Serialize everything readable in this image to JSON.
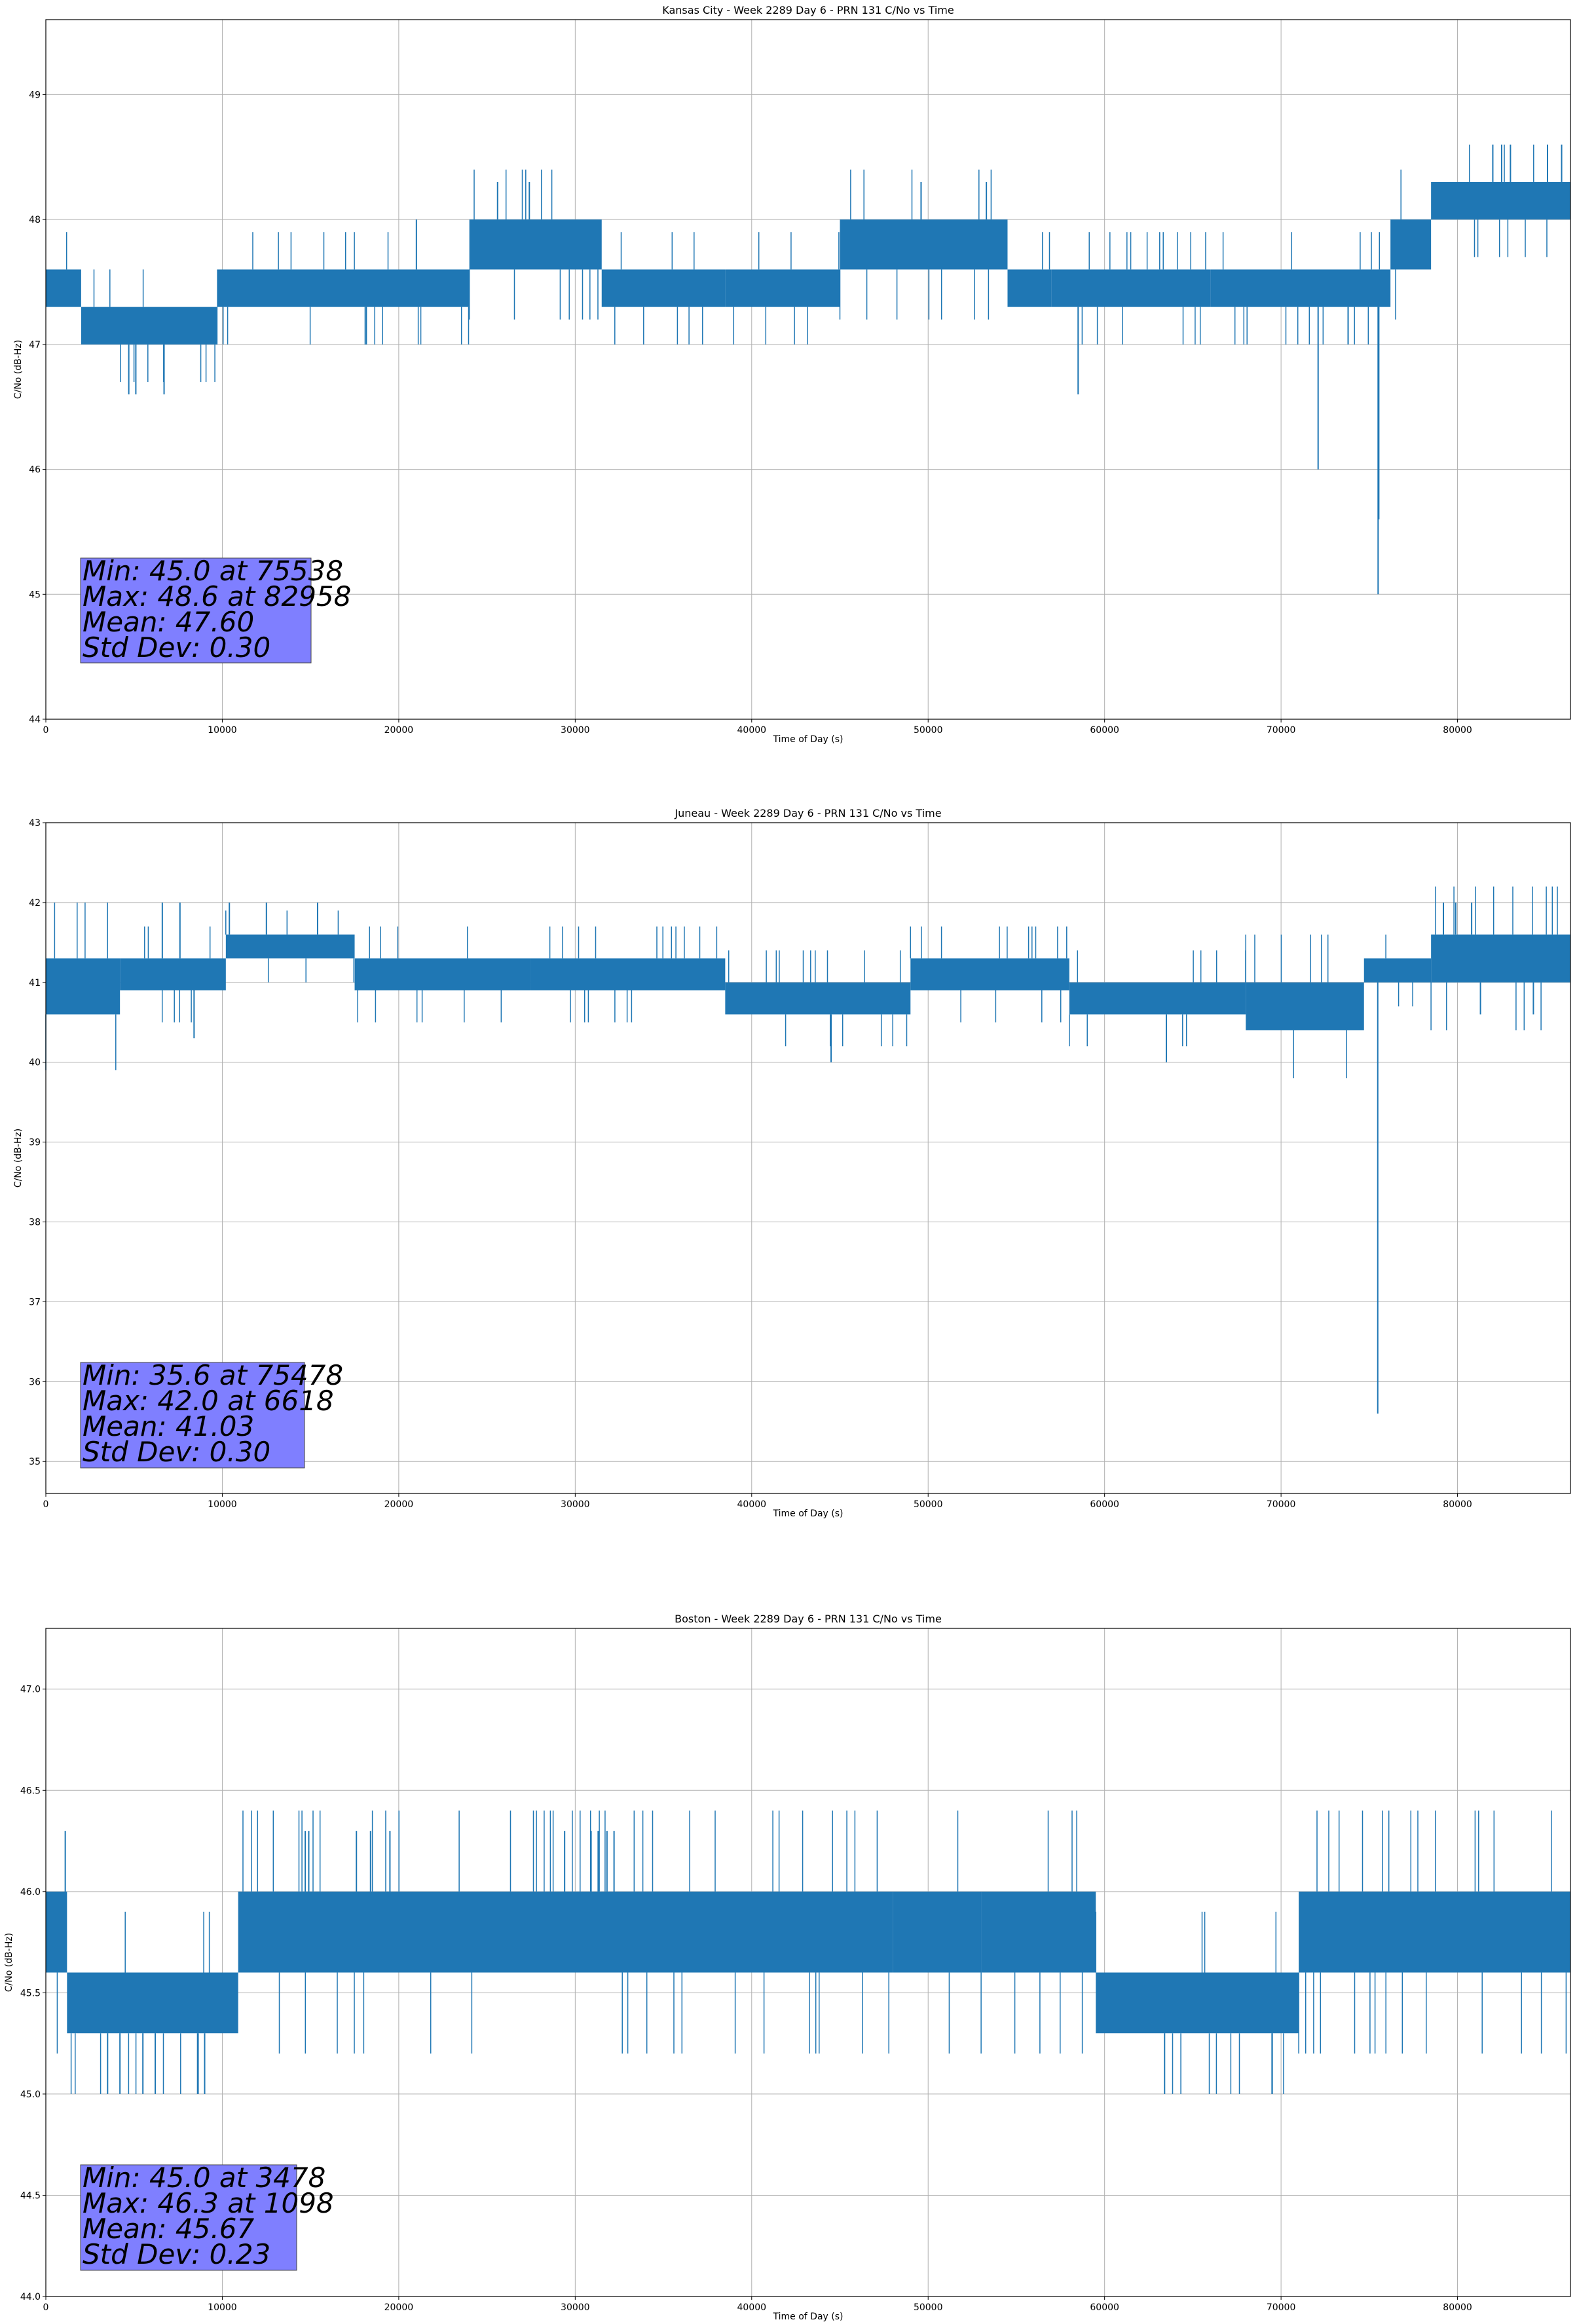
{
  "chart_data": [
    {
      "type": "line",
      "title": "Kansas City - Week 2289 Day 6 - PRN 131 C/No vs Time",
      "xlabel": "Time of Day (s)",
      "ylabel": "C/No (dB-Hz)",
      "xlim": [
        0,
        86400
      ],
      "ylim": [
        44,
        49.6
      ],
      "xticks": [
        0,
        10000,
        20000,
        30000,
        40000,
        50000,
        60000,
        70000,
        80000
      ],
      "yticks": [
        44,
        45,
        46,
        47,
        48,
        49
      ],
      "ytick_decimals": 0,
      "grid": true,
      "color": "#1f77b4",
      "stats": [
        "Min: 45.0 at 75538",
        "Max: 48.6 at 82958",
        "Mean: 47.60",
        "Std Dev: 0.30"
      ],
      "bands": [
        {
          "x0": 0,
          "x1": 2000,
          "lo": 47.3,
          "hi": 47.6
        },
        {
          "x0": 2000,
          "x1": 9700,
          "lo": 47.0,
          "hi": 47.3
        },
        {
          "x0": 9700,
          "x1": 24000,
          "lo": 47.3,
          "hi": 47.6
        },
        {
          "x0": 24000,
          "x1": 31500,
          "lo": 47.6,
          "hi": 48.0
        },
        {
          "x0": 31500,
          "x1": 38500,
          "lo": 47.3,
          "hi": 47.6
        },
        {
          "x0": 38500,
          "x1": 45000,
          "lo": 47.3,
          "hi": 47.6
        },
        {
          "x0": 45000,
          "x1": 54500,
          "lo": 47.6,
          "hi": 48.0
        },
        {
          "x0": 54500,
          "x1": 57000,
          "lo": 47.3,
          "hi": 47.6
        },
        {
          "x0": 57000,
          "x1": 66000,
          "lo": 47.3,
          "hi": 47.6
        },
        {
          "x0": 66000,
          "x1": 76200,
          "lo": 47.3,
          "hi": 47.6
        },
        {
          "x0": 76200,
          "x1": 78500,
          "lo": 47.6,
          "hi": 48.0
        },
        {
          "x0": 78500,
          "x1": 86400,
          "lo": 48.0,
          "hi": 48.3
        }
      ],
      "spikes": [
        {
          "x": 4700,
          "y": 46.6
        },
        {
          "x": 5100,
          "y": 46.6
        },
        {
          "x": 6700,
          "y": 46.6
        },
        {
          "x": 18100,
          "y": 47.0
        },
        {
          "x": 21000,
          "y": 48.0
        },
        {
          "x": 25600,
          "y": 48.3
        },
        {
          "x": 27400,
          "y": 48.3
        },
        {
          "x": 49600,
          "y": 48.3
        },
        {
          "x": 53300,
          "y": 48.3
        },
        {
          "x": 58500,
          "y": 46.6
        },
        {
          "x": 72100,
          "y": 46.0
        },
        {
          "x": 75500,
          "y": 45.0
        },
        {
          "x": 75540,
          "y": 45.6
        },
        {
          "x": 73800,
          "y": 47.0
        },
        {
          "x": 82000,
          "y": 48.6
        },
        {
          "x": 82500,
          "y": 48.6
        },
        {
          "x": 83000,
          "y": 48.6
        },
        {
          "x": 85100,
          "y": 48.6
        },
        {
          "x": 85900,
          "y": 48.6
        }
      ]
    },
    {
      "type": "line",
      "title": "Juneau - Week 2289 Day 6 - PRN 131 C/No vs Time",
      "xlabel": "Time of Day (s)",
      "ylabel": "C/No (dB-Hz)",
      "xlim": [
        0,
        86400
      ],
      "ylim": [
        34.6,
        43
      ],
      "xticks": [
        0,
        10000,
        20000,
        30000,
        40000,
        50000,
        60000,
        70000,
        80000
      ],
      "yticks": [
        35,
        36,
        37,
        38,
        39,
        40,
        41,
        42,
        43
      ],
      "ytick_decimals": 0,
      "grid": true,
      "color": "#1f77b4",
      "stats": [
        "Min: 35.6 at 75478",
        "Max: 42.0 at 6618",
        "Mean: 41.03",
        "Std Dev: 0.30"
      ],
      "bands": [
        {
          "x0": 0,
          "x1": 4200,
          "lo": 40.6,
          "hi": 41.3
        },
        {
          "x0": 4200,
          "x1": 10200,
          "lo": 40.9,
          "hi": 41.3
        },
        {
          "x0": 10200,
          "x1": 17500,
          "lo": 41.3,
          "hi": 41.6
        },
        {
          "x0": 17500,
          "x1": 27500,
          "lo": 40.9,
          "hi": 41.3
        },
        {
          "x0": 27500,
          "x1": 38500,
          "lo": 40.9,
          "hi": 41.3
        },
        {
          "x0": 38500,
          "x1": 49000,
          "lo": 40.6,
          "hi": 41.0
        },
        {
          "x0": 49000,
          "x1": 58000,
          "lo": 40.9,
          "hi": 41.3
        },
        {
          "x0": 58000,
          "x1": 68000,
          "lo": 40.6,
          "hi": 41.0
        },
        {
          "x0": 68000,
          "x1": 74700,
          "lo": 40.4,
          "hi": 41.0
        },
        {
          "x0": 74700,
          "x1": 78500,
          "lo": 41.0,
          "hi": 41.3
        },
        {
          "x0": 78500,
          "x1": 86400,
          "lo": 41.0,
          "hi": 41.6
        }
      ],
      "spikes": [
        {
          "x": 6600,
          "y": 42.0
        },
        {
          "x": 7600,
          "y": 42.0
        },
        {
          "x": 10400,
          "y": 42.0
        },
        {
          "x": 12500,
          "y": 42.0
        },
        {
          "x": 15400,
          "y": 42.0
        },
        {
          "x": 8400,
          "y": 40.3
        },
        {
          "x": 44500,
          "y": 40.0
        },
        {
          "x": 63500,
          "y": 40.0
        },
        {
          "x": 75480,
          "y": 35.6
        },
        {
          "x": 79200,
          "y": 42.0
        },
        {
          "x": 79900,
          "y": 42.0
        },
        {
          "x": 80800,
          "y": 42.0
        },
        {
          "x": 81300,
          "y": 40.6
        },
        {
          "x": 84300,
          "y": 40.6
        }
      ]
    },
    {
      "type": "line",
      "title": "Boston - Week 2289 Day 6 - PRN 131 C/No vs Time",
      "xlabel": "Time of Day (s)",
      "ylabel": "C/No (dB-Hz)",
      "xlim": [
        0,
        86400
      ],
      "ylim": [
        44,
        47.3
      ],
      "xticks": [
        0,
        10000,
        20000,
        30000,
        40000,
        50000,
        60000,
        70000,
        80000
      ],
      "yticks": [
        44.0,
        44.5,
        45.0,
        45.5,
        46.0,
        46.5,
        47.0
      ],
      "ytick_decimals": 1,
      "grid": true,
      "color": "#1f77b4",
      "stats": [
        "Min: 45.0 at 3478",
        "Max: 46.3 at 1098",
        "Mean: 45.67",
        "Std Dev: 0.23"
      ],
      "bands": [
        {
          "x0": 0,
          "x1": 1200,
          "lo": 45.6,
          "hi": 46.0
        },
        {
          "x0": 1200,
          "x1": 10900,
          "lo": 45.3,
          "hi": 45.6
        },
        {
          "x0": 10900,
          "x1": 48000,
          "lo": 45.6,
          "hi": 46.0
        },
        {
          "x0": 48000,
          "x1": 53000,
          "lo": 45.6,
          "hi": 46.0
        },
        {
          "x0": 53000,
          "x1": 59500,
          "lo": 45.6,
          "hi": 46.0
        },
        {
          "x0": 59500,
          "x1": 71000,
          "lo": 45.3,
          "hi": 45.6
        },
        {
          "x0": 71000,
          "x1": 86400,
          "lo": 45.6,
          "hi": 46.0
        }
      ],
      "spikes": [
        {
          "x": 1100,
          "y": 46.3
        },
        {
          "x": 3500,
          "y": 45.0
        },
        {
          "x": 4200,
          "y": 45.0
        },
        {
          "x": 5500,
          "y": 45.0
        },
        {
          "x": 6200,
          "y": 45.0
        },
        {
          "x": 8600,
          "y": 45.0
        },
        {
          "x": 9000,
          "y": 45.0
        },
        {
          "x": 14700,
          "y": 46.3
        },
        {
          "x": 14900,
          "y": 46.3
        },
        {
          "x": 17600,
          "y": 46.3
        },
        {
          "x": 18400,
          "y": 46.3
        },
        {
          "x": 19500,
          "y": 46.3
        },
        {
          "x": 29400,
          "y": 46.3
        },
        {
          "x": 30900,
          "y": 46.3
        },
        {
          "x": 31300,
          "y": 46.3
        },
        {
          "x": 31800,
          "y": 46.3
        },
        {
          "x": 32200,
          "y": 46.3
        },
        {
          "x": 63400,
          "y": 45.0
        },
        {
          "x": 69500,
          "y": 45.0
        }
      ]
    }
  ]
}
